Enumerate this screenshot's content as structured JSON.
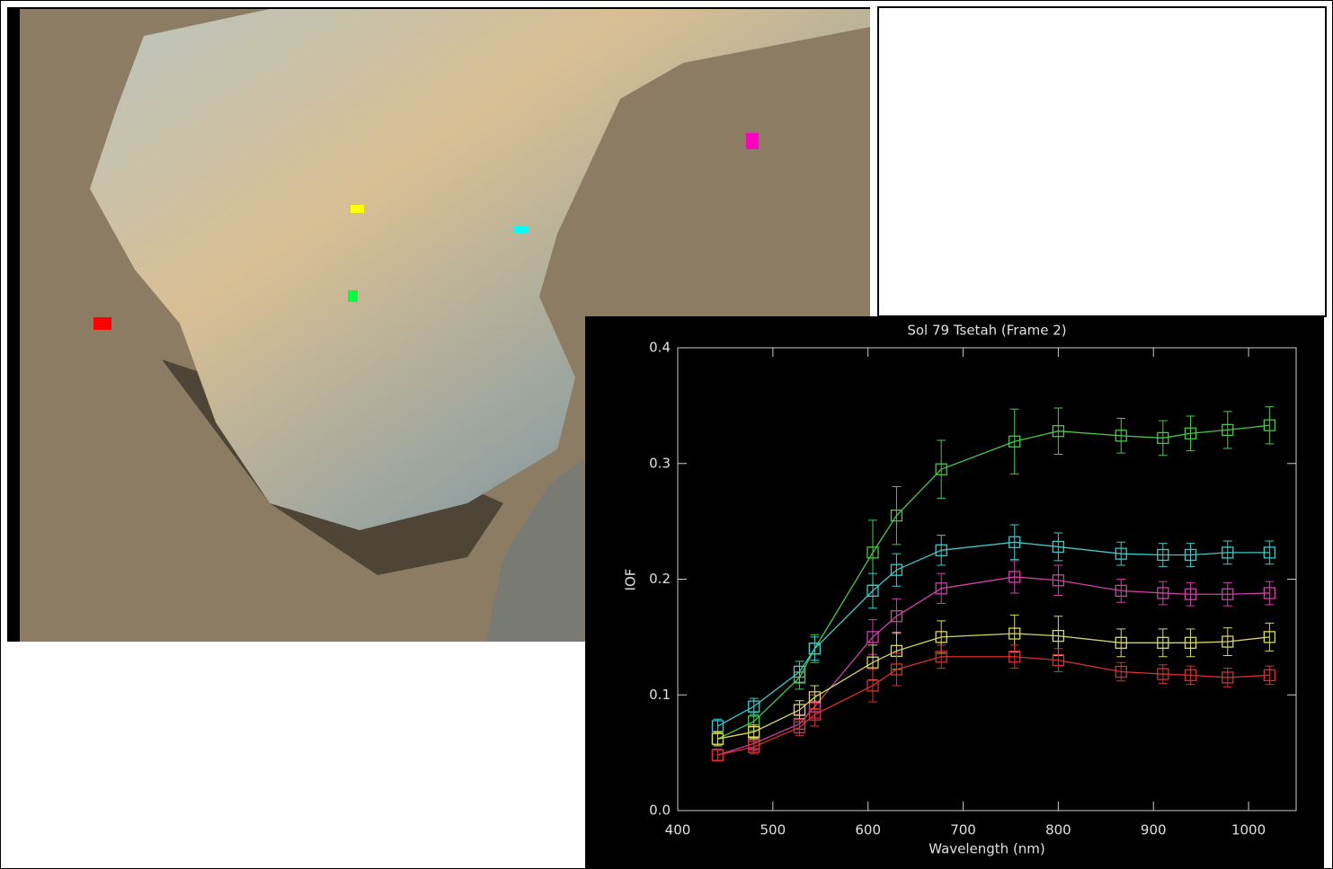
{
  "chart_data": {
    "type": "line",
    "title": "Sol 79 Tsetah (Frame 2)",
    "x_label": "Wavelength (nm)",
    "y_label": "IOF",
    "x": [
      442,
      480,
      528,
      544,
      605,
      630,
      677,
      754,
      800,
      866,
      910,
      939,
      978,
      1022
    ],
    "xlim": [
      400,
      1050
    ],
    "xticks": [
      400,
      500,
      600,
      700,
      800,
      900,
      1000
    ],
    "ylim": [
      0,
      0.4
    ],
    "yticks": [
      {
        "value": 0,
        "label": "0.0"
      },
      0.1,
      0.2,
      0.3,
      0.4
    ],
    "series": [
      {
        "color": "#48c848",
        "values": [
          0.062,
          0.077,
          0.115,
          0.14,
          0.223,
          0.255,
          0.295,
          0.319,
          0.328,
          0.324,
          0.322,
          0.326,
          0.329,
          0.333
        ],
        "errors": [
          0.006,
          0.008,
          0.01,
          0.012,
          0.028,
          0.025,
          0.025,
          0.028,
          0.02,
          0.015,
          0.015,
          0.015,
          0.016,
          0.016
        ]
      },
      {
        "color": "#40c8c8",
        "values": [
          0.073,
          0.09,
          0.12,
          0.14,
          0.19,
          0.208,
          0.225,
          0.232,
          0.228,
          0.222,
          0.221,
          0.221,
          0.223,
          0.223
        ],
        "errors": [
          0.006,
          0.007,
          0.009,
          0.01,
          0.015,
          0.014,
          0.013,
          0.015,
          0.012,
          0.01,
          0.01,
          0.01,
          0.01,
          0.01
        ]
      },
      {
        "color": "#d040a8",
        "values": [
          0.048,
          0.058,
          0.075,
          0.09,
          0.15,
          0.168,
          0.192,
          0.202,
          0.199,
          0.19,
          0.188,
          0.187,
          0.187,
          0.188
        ],
        "errors": [
          0.005,
          0.006,
          0.008,
          0.01,
          0.015,
          0.015,
          0.013,
          0.014,
          0.013,
          0.01,
          0.01,
          0.01,
          0.01,
          0.01
        ]
      },
      {
        "color": "#d8d860",
        "values": [
          0.062,
          0.068,
          0.087,
          0.098,
          0.128,
          0.138,
          0.15,
          0.153,
          0.151,
          0.145,
          0.145,
          0.145,
          0.146,
          0.15
        ],
        "errors": [
          0.006,
          0.006,
          0.008,
          0.01,
          0.015,
          0.016,
          0.014,
          0.016,
          0.017,
          0.012,
          0.012,
          0.012,
          0.012,
          0.012
        ]
      },
      {
        "color": "#d83030",
        "values": [
          0.048,
          0.055,
          0.072,
          0.083,
          0.108,
          0.122,
          0.133,
          0.133,
          0.13,
          0.12,
          0.118,
          0.117,
          0.115,
          0.117
        ],
        "errors": [
          0.005,
          0.006,
          0.007,
          0.01,
          0.014,
          0.014,
          0.01,
          0.01,
          0.01,
          0.008,
          0.008,
          0.008,
          0.008,
          0.008
        ]
      }
    ]
  }
}
